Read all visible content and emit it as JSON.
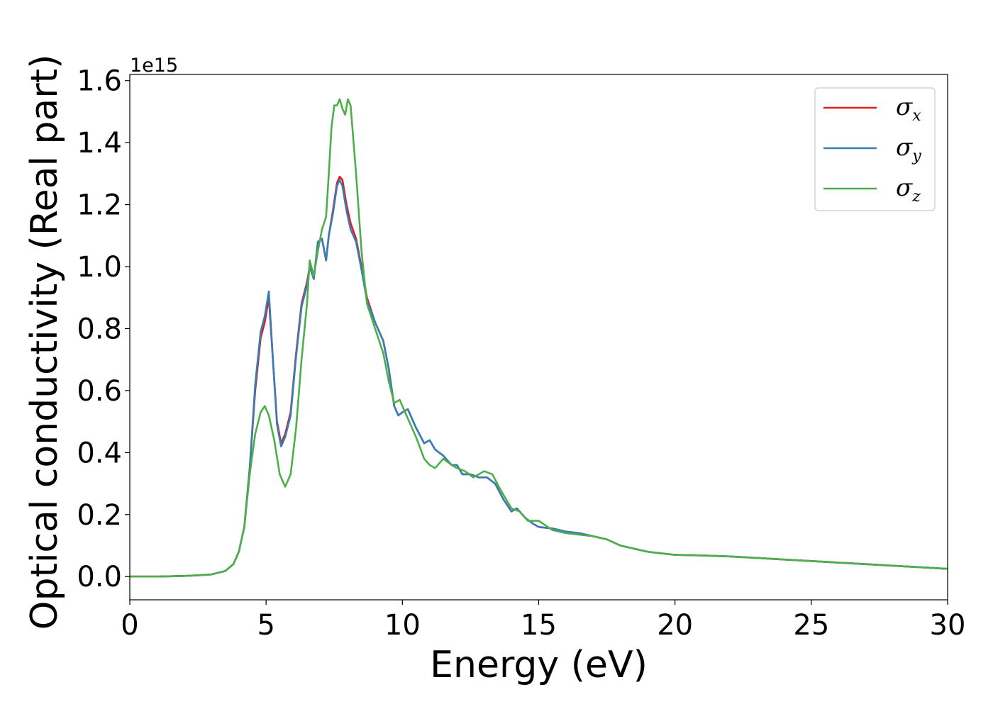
{
  "chart_data": {
    "type": "line",
    "title": "",
    "xlabel": "Energy (eV)",
    "ylabel": "Optical conductivity (Real part)",
    "offset_text": "1e15",
    "xlim": [
      0,
      30
    ],
    "ylim": [
      -0.075,
      1.62
    ],
    "xticks": [
      0,
      5,
      10,
      15,
      20,
      25,
      30
    ],
    "xtick_labels": [
      "0",
      "5",
      "10",
      "15",
      "20",
      "25",
      "30"
    ],
    "yticks": [
      0.0,
      0.2,
      0.4,
      0.6,
      0.8,
      1.0,
      1.2,
      1.4,
      1.6
    ],
    "ytick_labels": [
      "0.0",
      "0.2",
      "0.4",
      "0.6",
      "0.8",
      "1.0",
      "1.2",
      "1.4",
      "1.6"
    ],
    "grid": false,
    "legend_position": "top-right",
    "series": [
      {
        "name": "σx",
        "symbol": "σ",
        "subscript": "x",
        "color": "#e41a1c",
        "x": [
          0,
          1,
          2,
          2.5,
          3,
          3.5,
          3.8,
          4.0,
          4.2,
          4.4,
          4.6,
          4.8,
          4.95,
          5.1,
          5.25,
          5.4,
          5.55,
          5.7,
          5.9,
          6.1,
          6.3,
          6.5,
          6.6,
          6.75,
          6.9,
          7.05,
          7.2,
          7.3,
          7.45,
          7.6,
          7.7,
          7.8,
          7.95,
          8.1,
          8.3,
          8.5,
          8.7,
          9.0,
          9.3,
          9.5,
          9.7,
          9.85,
          10.0,
          10.2,
          10.5,
          10.8,
          11.0,
          11.2,
          11.5,
          11.8,
          12.0,
          12.2,
          12.5,
          12.8,
          13.1,
          13.4,
          13.7,
          14.0,
          14.2,
          14.5,
          14.8,
          15.0,
          15.5,
          16.0,
          16.5,
          17.0,
          17.5,
          18.0,
          18.5,
          19.0,
          19.5,
          20.0,
          21.0,
          22.0,
          23.0,
          24.0,
          25.0,
          26.0,
          27.0,
          28.0,
          29.0,
          30.0
        ],
        "values": [
          0.0,
          0.0,
          0.002,
          0.004,
          0.007,
          0.018,
          0.04,
          0.08,
          0.16,
          0.35,
          0.6,
          0.77,
          0.82,
          0.9,
          0.7,
          0.5,
          0.43,
          0.46,
          0.53,
          0.72,
          0.88,
          0.95,
          1.0,
          0.96,
          1.08,
          1.09,
          1.02,
          1.1,
          1.18,
          1.27,
          1.29,
          1.28,
          1.2,
          1.14,
          1.09,
          1.0,
          0.9,
          0.82,
          0.76,
          0.67,
          0.55,
          0.52,
          0.53,
          0.54,
          0.48,
          0.43,
          0.44,
          0.41,
          0.39,
          0.36,
          0.36,
          0.33,
          0.33,
          0.32,
          0.32,
          0.3,
          0.25,
          0.21,
          0.22,
          0.19,
          0.17,
          0.16,
          0.155,
          0.145,
          0.14,
          0.13,
          0.12,
          0.1,
          0.09,
          0.08,
          0.075,
          0.07,
          0.068,
          0.065,
          0.06,
          0.055,
          0.05,
          0.045,
          0.04,
          0.035,
          0.03,
          0.025
        ]
      },
      {
        "name": "σy",
        "symbol": "σ",
        "subscript": "y",
        "color": "#377eb8",
        "x": [
          0,
          1,
          2,
          2.5,
          3,
          3.5,
          3.8,
          4.0,
          4.2,
          4.4,
          4.6,
          4.8,
          4.95,
          5.1,
          5.25,
          5.4,
          5.55,
          5.7,
          5.9,
          6.1,
          6.3,
          6.5,
          6.6,
          6.75,
          6.9,
          7.05,
          7.2,
          7.3,
          7.45,
          7.6,
          7.7,
          7.8,
          7.95,
          8.1,
          8.3,
          8.5,
          8.7,
          9.0,
          9.3,
          9.5,
          9.7,
          9.85,
          10.0,
          10.2,
          10.5,
          10.8,
          11.0,
          11.2,
          11.5,
          11.8,
          12.0,
          12.2,
          12.5,
          12.8,
          13.1,
          13.4,
          13.7,
          14.0,
          14.2,
          14.5,
          14.8,
          15.0,
          15.5,
          16.0,
          16.5,
          17.0,
          17.5,
          18.0,
          18.5,
          19.0,
          19.5,
          20.0,
          21.0,
          22.0,
          23.0,
          24.0,
          25.0,
          26.0,
          27.0,
          28.0,
          29.0,
          30.0
        ],
        "values": [
          0.0,
          0.0,
          0.002,
          0.004,
          0.007,
          0.018,
          0.04,
          0.08,
          0.16,
          0.35,
          0.62,
          0.79,
          0.84,
          0.92,
          0.7,
          0.49,
          0.42,
          0.45,
          0.52,
          0.71,
          0.87,
          0.94,
          1.0,
          0.96,
          1.08,
          1.09,
          1.02,
          1.1,
          1.17,
          1.26,
          1.28,
          1.26,
          1.18,
          1.12,
          1.08,
          0.99,
          0.89,
          0.82,
          0.76,
          0.67,
          0.55,
          0.52,
          0.53,
          0.54,
          0.48,
          0.43,
          0.44,
          0.41,
          0.39,
          0.36,
          0.36,
          0.33,
          0.33,
          0.32,
          0.32,
          0.3,
          0.25,
          0.21,
          0.22,
          0.19,
          0.17,
          0.16,
          0.155,
          0.145,
          0.14,
          0.13,
          0.12,
          0.1,
          0.09,
          0.08,
          0.075,
          0.07,
          0.068,
          0.065,
          0.06,
          0.055,
          0.05,
          0.045,
          0.04,
          0.035,
          0.03,
          0.025
        ]
      },
      {
        "name": "σz",
        "symbol": "σ",
        "subscript": "z",
        "color": "#4daf4a",
        "x": [
          0,
          1,
          2,
          2.5,
          3,
          3.5,
          3.8,
          4.0,
          4.2,
          4.4,
          4.6,
          4.8,
          4.95,
          5.1,
          5.3,
          5.5,
          5.7,
          5.9,
          6.1,
          6.3,
          6.5,
          6.6,
          6.75,
          6.9,
          7.05,
          7.2,
          7.3,
          7.4,
          7.5,
          7.6,
          7.7,
          7.8,
          7.9,
          8.0,
          8.1,
          8.3,
          8.5,
          8.7,
          9.0,
          9.3,
          9.5,
          9.7,
          9.9,
          10.2,
          10.5,
          10.8,
          11.0,
          11.2,
          11.5,
          11.8,
          12.0,
          12.3,
          12.6,
          13.0,
          13.3,
          13.6,
          14.0,
          14.3,
          14.6,
          15.0,
          15.5,
          16.0,
          16.5,
          17.0,
          17.5,
          18.0,
          18.5,
          19.0,
          19.5,
          20.0,
          21.0,
          22.0,
          23.0,
          24.0,
          25.0,
          26.0,
          27.0,
          28.0,
          29.0,
          30.0
        ],
        "values": [
          0.0,
          0.0,
          0.002,
          0.004,
          0.007,
          0.018,
          0.04,
          0.08,
          0.16,
          0.33,
          0.46,
          0.53,
          0.55,
          0.52,
          0.44,
          0.33,
          0.29,
          0.33,
          0.48,
          0.7,
          0.88,
          1.02,
          0.97,
          1.05,
          1.12,
          1.16,
          1.3,
          1.45,
          1.52,
          1.52,
          1.54,
          1.51,
          1.49,
          1.54,
          1.52,
          1.3,
          1.05,
          0.88,
          0.8,
          0.72,
          0.63,
          0.56,
          0.57,
          0.51,
          0.45,
          0.38,
          0.36,
          0.35,
          0.38,
          0.36,
          0.35,
          0.34,
          0.32,
          0.34,
          0.33,
          0.28,
          0.22,
          0.21,
          0.18,
          0.18,
          0.15,
          0.14,
          0.135,
          0.13,
          0.12,
          0.1,
          0.09,
          0.08,
          0.075,
          0.07,
          0.068,
          0.065,
          0.06,
          0.055,
          0.05,
          0.045,
          0.04,
          0.035,
          0.03,
          0.025
        ]
      }
    ]
  }
}
